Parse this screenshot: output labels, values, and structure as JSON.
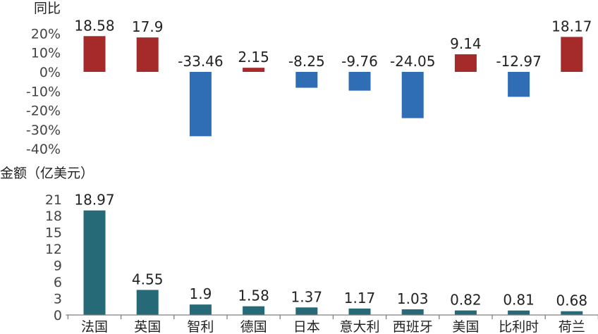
{
  "chart_data": [
    {
      "type": "bar",
      "ylabel": "同比",
      "categories": [
        "法国",
        "英国",
        "智利",
        "德国",
        "日本",
        "意大利",
        "西班牙",
        "美国",
        "比利时",
        "荷兰"
      ],
      "values": [
        18.58,
        17.9,
        -33.46,
        2.15,
        -8.25,
        -9.76,
        -24.05,
        9.14,
        -12.97,
        18.17
      ],
      "value_labels": [
        "18.58",
        "17.9",
        "-33.46",
        "2.15",
        "-8.25",
        "-9.76",
        "-24.05",
        "9.14",
        "-12.97",
        "18.17"
      ],
      "ylim": [
        -40,
        20
      ],
      "yticks": [
        "20%",
        "10%",
        "0%",
        "-10%",
        "-20%",
        "-30%",
        "-40%"
      ],
      "colors": {
        "positive": "#A52A2A",
        "negative": "#2F6DB5"
      },
      "grid": false
    },
    {
      "type": "bar",
      "ylabel": "金额（亿美元）",
      "categories": [
        "法国",
        "英国",
        "智利",
        "德国",
        "日本",
        "意大利",
        "西班牙",
        "美国",
        "比利时",
        "荷兰"
      ],
      "values": [
        18.97,
        4.55,
        1.9,
        1.58,
        1.37,
        1.17,
        1.03,
        0.82,
        0.81,
        0.68
      ],
      "value_labels": [
        "18.97",
        "4.55",
        "1.9",
        "1.58",
        "1.37",
        "1.17",
        "1.03",
        "0.82",
        "0.81",
        "0.68"
      ],
      "ylim": [
        0,
        21
      ],
      "yticks": [
        "21",
        "18",
        "15",
        "12",
        "9",
        "6",
        "3",
        "0"
      ],
      "colors": {
        "bar": "#266A77",
        "axis": "#7F7F7F"
      },
      "grid": false
    }
  ]
}
